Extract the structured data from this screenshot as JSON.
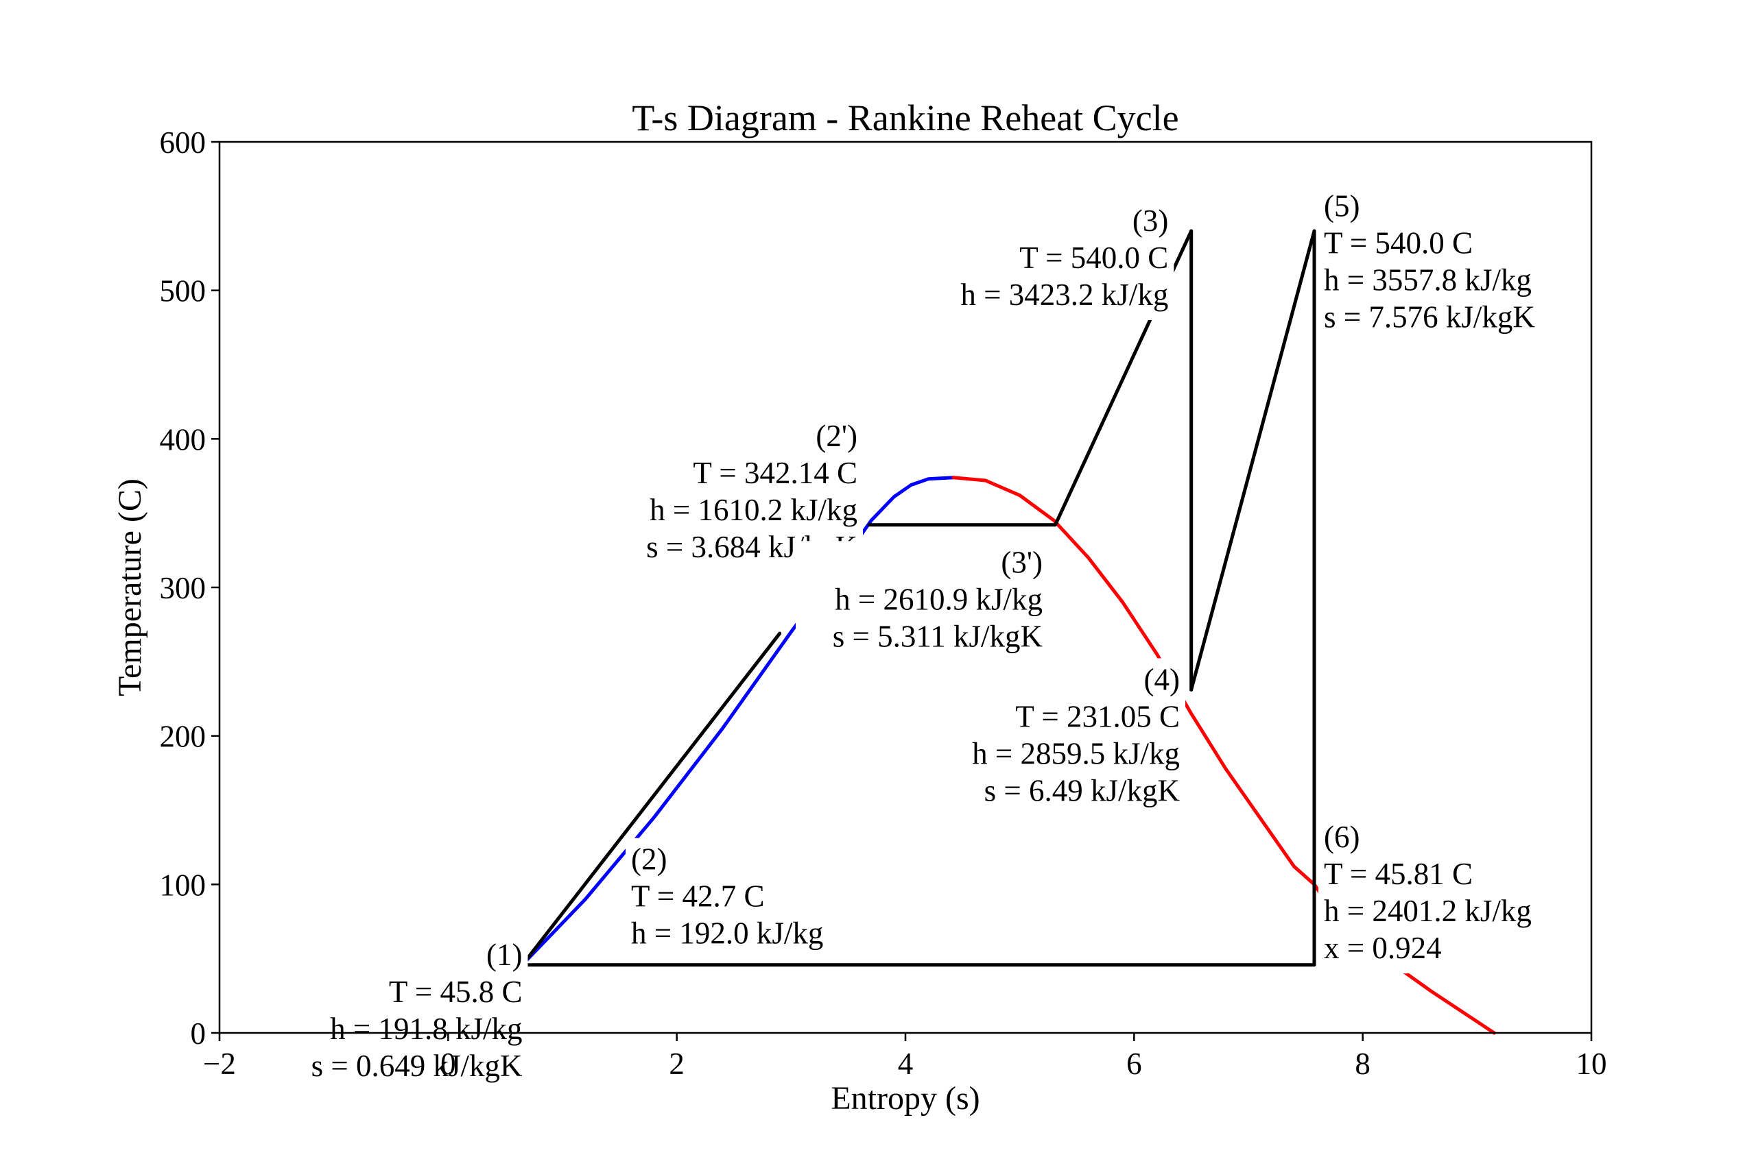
{
  "chart_data": {
    "type": "line",
    "title": "T-s Diagram - Rankine Reheat Cycle",
    "xlabel": "Entropy (s)",
    "ylabel": "Temperature (C)",
    "xlim": [
      -2,
      10
    ],
    "ylim": [
      0,
      600
    ],
    "xticks": [
      -2,
      0,
      2,
      4,
      6,
      8,
      10
    ],
    "yticks": [
      0,
      100,
      200,
      300,
      400,
      500,
      600
    ],
    "xtick_labels": [
      "−2",
      "0",
      "2",
      "4",
      "6",
      "8",
      "10"
    ],
    "ytick_labels": [
      "0",
      "100",
      "200",
      "300",
      "400",
      "500",
      "600"
    ],
    "grid": false,
    "colors": {
      "liquid_line": "#0000ff",
      "vapor_line": "#ff0000",
      "cycle": "#000000"
    },
    "saturation_liquid": {
      "color": "#0000ff",
      "points": [
        [
          0,
          0
        ],
        [
          0.6,
          42
        ],
        [
          1.2,
          90
        ],
        [
          1.8,
          145
        ],
        [
          2.4,
          205
        ],
        [
          3.0,
          270
        ],
        [
          3.4,
          312
        ],
        [
          3.7,
          345
        ],
        [
          3.9,
          361
        ],
        [
          4.05,
          369
        ],
        [
          4.2,
          373
        ],
        [
          4.42,
          374
        ]
      ]
    },
    "saturation_vapor": {
      "color": "#ff0000",
      "points": [
        [
          4.42,
          374
        ],
        [
          4.7,
          372
        ],
        [
          5.0,
          362
        ],
        [
          5.3,
          345
        ],
        [
          5.6,
          320
        ],
        [
          5.9,
          290
        ],
        [
          6.2,
          255
        ],
        [
          6.5,
          215
        ],
        [
          6.8,
          178
        ],
        [
          7.1,
          145
        ],
        [
          7.4,
          112
        ],
        [
          7.576,
          100
        ],
        [
          7.8,
          75
        ],
        [
          8.2,
          50
        ],
        [
          8.6,
          28
        ],
        [
          9.15,
          0
        ]
      ]
    },
    "cycle_segments": [
      {
        "from": [
          0.649,
          45.8
        ],
        "to": [
          0.649,
          45.8
        ]
      },
      {
        "from": [
          0.649,
          45.8
        ],
        "to": [
          2.9,
          269
        ]
      },
      {
        "from": [
          3.684,
          342.14
        ],
        "to": [
          5.311,
          342.14
        ]
      },
      {
        "from": [
          5.311,
          342.14
        ],
        "to": [
          6.5,
          540
        ]
      },
      {
        "from": [
          6.5,
          540
        ],
        "to": [
          6.5,
          231.05
        ]
      },
      {
        "from": [
          6.5,
          231.05
        ],
        "to": [
          7.576,
          540
        ]
      },
      {
        "from": [
          7.576,
          540
        ],
        "to": [
          7.576,
          45.81
        ]
      },
      {
        "from": [
          7.576,
          45.81
        ],
        "to": [
          0.649,
          45.81
        ]
      }
    ],
    "annotations": [
      {
        "id": "state-1",
        "anchor": [
          0.649,
          45.8
        ],
        "align": "end",
        "lines": [
          "(1)",
          "T = 45.8 C",
          "h = 191.8 kJ/kg",
          "s = 0.649 kJ/kgK"
        ]
      },
      {
        "id": "state-2",
        "anchor": [
          1.6,
          110
        ],
        "align": "start",
        "lines": [
          "(2)",
          "T = 42.7 C",
          "h = 192.0 kJ/kg"
        ]
      },
      {
        "id": "state-2-prime",
        "anchor": [
          3.58,
          395
        ],
        "align": "end",
        "lines": [
          "(2')",
          "T = 342.14 C",
          "h = 1610.2 kJ/kg",
          "s = 3.684 kJ/kgK"
        ]
      },
      {
        "id": "state-3-prime",
        "anchor": [
          5.2,
          310
        ],
        "align": "end",
        "lines": [
          "(3')",
          "h = 2610.9 kJ/kg",
          "s = 5.311 kJ/kgK"
        ]
      },
      {
        "id": "state-3",
        "anchor": [
          6.3,
          540
        ],
        "align": "end",
        "lines": [
          "(3)",
          "T = 540.0 C",
          "h = 3423.2 kJ/kg"
        ]
      },
      {
        "id": "state-4",
        "anchor": [
          6.4,
          231
        ],
        "align": "end",
        "lines": [
          "(4)",
          "T = 231.05 C",
          "h = 2859.5 kJ/kg",
          "s = 6.49 kJ/kgK"
        ]
      },
      {
        "id": "state-5",
        "anchor": [
          7.66,
          550
        ],
        "align": "start",
        "lines": [
          "(5)",
          "T = 540.0 C",
          "h = 3557.8 kJ/kg",
          "s = 7.576 kJ/kgK"
        ]
      },
      {
        "id": "state-6",
        "anchor": [
          7.66,
          125
        ],
        "align": "start",
        "lines": [
          "(6)",
          "T = 45.81 C",
          "h = 2401.2 kJ/kg",
          "x = 0.924"
        ]
      }
    ]
  }
}
